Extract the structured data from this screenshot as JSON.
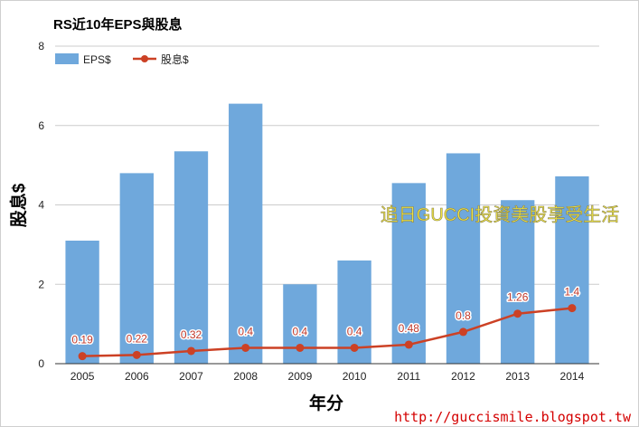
{
  "chart_data": {
    "type": "bar",
    "title": "RS近10年EPS與股息",
    "xlabel": "年分",
    "ylabel": "股息$",
    "categories": [
      "2005",
      "2006",
      "2007",
      "2008",
      "2009",
      "2010",
      "2011",
      "2012",
      "2013",
      "2014"
    ],
    "series": [
      {
        "name": "EPS$",
        "type": "bar",
        "color": "#6fa8dc",
        "values": [
          3.1,
          4.8,
          5.35,
          6.55,
          2.0,
          2.6,
          4.55,
          5.3,
          4.12,
          4.72
        ]
      },
      {
        "name": "股息$",
        "type": "line",
        "color": "#cc4125",
        "values": [
          0.19,
          0.22,
          0.32,
          0.4,
          0.4,
          0.4,
          0.48,
          0.8,
          1.26,
          1.4
        ],
        "labels": [
          "0.19",
          "0.22",
          "0.32",
          "0.4",
          "0.4",
          "0.4",
          "0.48",
          "0.8",
          "1.26",
          "1.4"
        ]
      }
    ],
    "ylim": [
      0,
      8
    ],
    "yticks": [
      "0",
      "2",
      "4",
      "6",
      "8"
    ],
    "grid": true,
    "legend": "top-left"
  },
  "overlay": {
    "watermark": "追日GUCCI投資美股享受生活",
    "source_url": "http://guccismile.blogspot.tw"
  }
}
